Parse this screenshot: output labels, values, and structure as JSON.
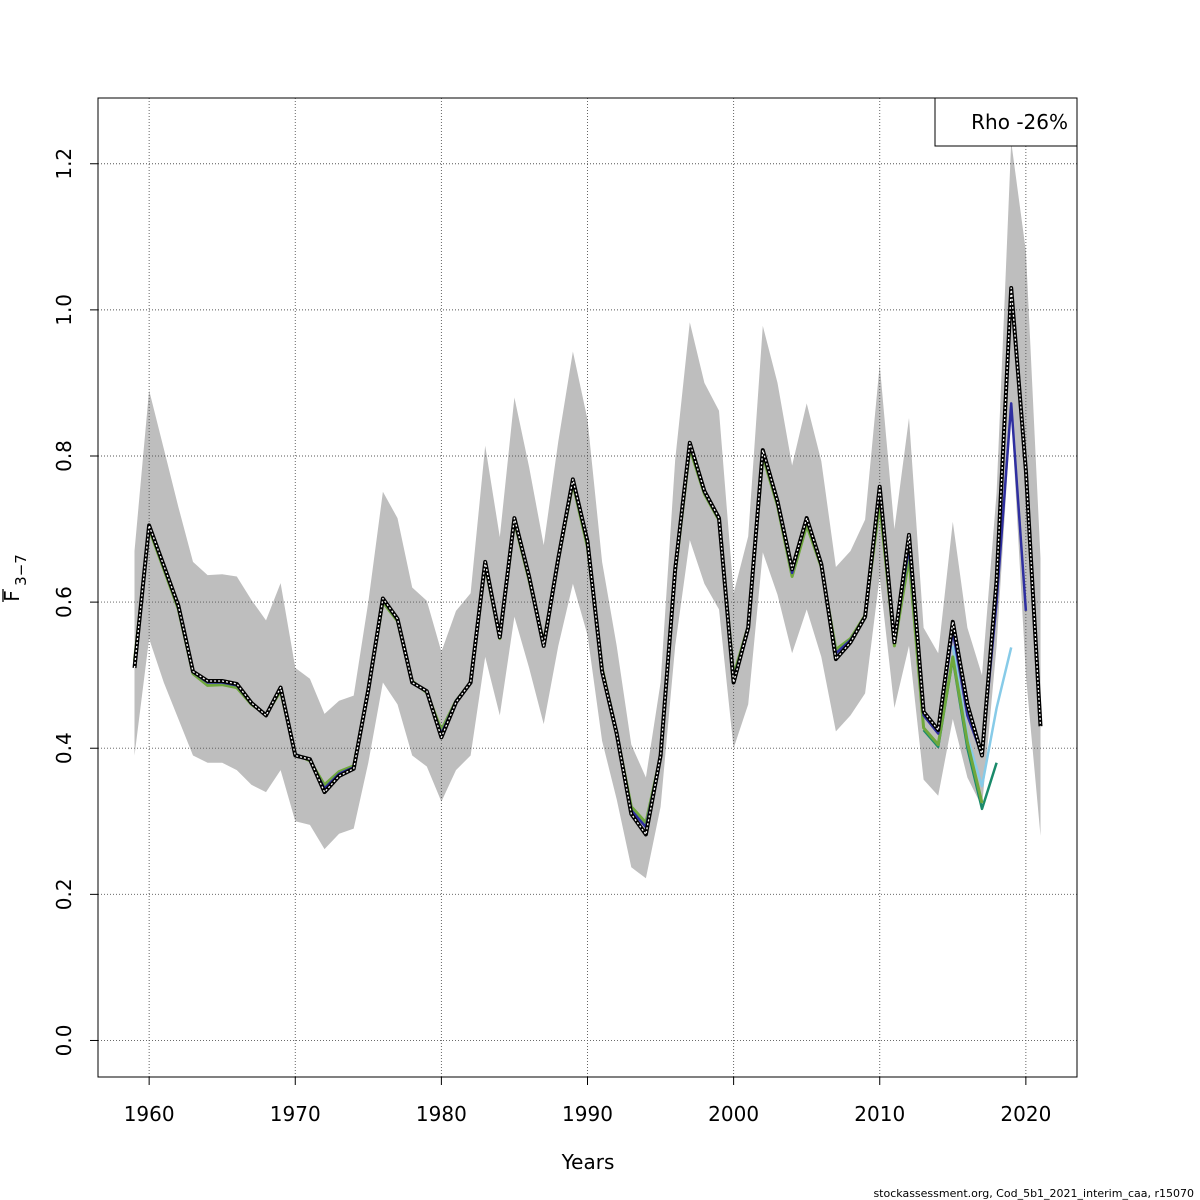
{
  "chart_data": {
    "type": "line",
    "xlabel": "Years",
    "ylabel_main": "F",
    "ylabel_sub": "3−7",
    "xlim": [
      1956.5,
      2023.5
    ],
    "ylim": [
      -0.05,
      1.29
    ],
    "xticks": [
      1960,
      1970,
      1980,
      1990,
      2000,
      2010,
      2020
    ],
    "yticks": [
      0.0,
      0.2,
      0.4,
      0.6,
      0.8,
      1.0,
      1.2
    ],
    "ytick_labels": [
      "0.0",
      "0.2",
      "0.4",
      "0.6",
      "0.8",
      "1.0",
      "1.2"
    ],
    "grid": true,
    "legend": {
      "position": "top-right",
      "text": "Rho -26%"
    },
    "credit": "stockassessment.org, Cod_5b1_2021_interim_caa, r15070",
    "colors": {
      "band": "#bebebe",
      "full": "#000000",
      "peel1": "#2e2ea0",
      "peel2": "#6fa83c",
      "peel3": "#1a8a6a",
      "peel4": "#87cbe8"
    },
    "band": {
      "x": [
        1959,
        1960,
        1961,
        1962,
        1963,
        1964,
        1965,
        1966,
        1967,
        1968,
        1969,
        1970,
        1971,
        1972,
        1973,
        1974,
        1975,
        1976,
        1977,
        1978,
        1979,
        1980,
        1981,
        1982,
        1983,
        1984,
        1985,
        1986,
        1987,
        1988,
        1989,
        1990,
        1991,
        1992,
        1993,
        1994,
        1995,
        1996,
        1997,
        1998,
        1999,
        2000,
        2001,
        2002,
        2003,
        2004,
        2005,
        2006,
        2007,
        2008,
        2009,
        2010,
        2011,
        2012,
        2013,
        2014,
        2015,
        2016,
        2017,
        2018,
        2019,
        2020,
        2021
      ],
      "lower": [
        0.39,
        0.55,
        0.49,
        0.44,
        0.39,
        0.38,
        0.38,
        0.37,
        0.35,
        0.34,
        0.37,
        0.3,
        0.295,
        0.262,
        0.283,
        0.29,
        0.38,
        0.49,
        0.46,
        0.39,
        0.375,
        0.327,
        0.37,
        0.39,
        0.525,
        0.445,
        0.58,
        0.51,
        0.433,
        0.54,
        0.625,
        0.555,
        0.41,
        0.33,
        0.237,
        0.222,
        0.32,
        0.54,
        0.685,
        0.625,
        0.59,
        0.4,
        0.46,
        0.668,
        0.61,
        0.53,
        0.59,
        0.525,
        0.423,
        0.445,
        0.475,
        0.635,
        0.455,
        0.54,
        0.357,
        0.335,
        0.44,
        0.36,
        0.32,
        0.54,
        0.86,
        0.5,
        0.28
      ],
      "upper": [
        0.67,
        0.89,
        0.81,
        0.73,
        0.655,
        0.637,
        0.638,
        0.635,
        0.603,
        0.575,
        0.626,
        0.51,
        0.495,
        0.447,
        0.465,
        0.472,
        0.6,
        0.751,
        0.715,
        0.62,
        0.602,
        0.532,
        0.588,
        0.612,
        0.814,
        0.689,
        0.88,
        0.785,
        0.678,
        0.82,
        0.943,
        0.85,
        0.655,
        0.54,
        0.405,
        0.36,
        0.49,
        0.795,
        0.983,
        0.9,
        0.862,
        0.612,
        0.69,
        0.978,
        0.9,
        0.787,
        0.872,
        0.793,
        0.648,
        0.67,
        0.713,
        0.925,
        0.7,
        0.852,
        0.565,
        0.53,
        0.71,
        0.565,
        0.5,
        0.75,
        1.23,
        1.08,
        0.66
      ]
    },
    "series": [
      {
        "role": "full",
        "x": [
          1959,
          1960,
          1961,
          1962,
          1963,
          1964,
          1965,
          1966,
          1967,
          1968,
          1969,
          1970,
          1971,
          1972,
          1973,
          1974,
          1975,
          1976,
          1977,
          1978,
          1979,
          1980,
          1981,
          1982,
          1983,
          1984,
          1985,
          1986,
          1987,
          1988,
          1989,
          1990,
          1991,
          1992,
          1993,
          1994,
          1995,
          1996,
          1997,
          1998,
          1999,
          2000,
          2001,
          2002,
          2003,
          2004,
          2005,
          2006,
          2007,
          2008,
          2009,
          2010,
          2011,
          2012,
          2013,
          2014,
          2015,
          2016,
          2017,
          2018,
          2019,
          2020,
          2021
        ],
        "values": [
          0.51,
          0.705,
          0.65,
          0.595,
          0.505,
          0.492,
          0.492,
          0.488,
          0.462,
          0.445,
          0.483,
          0.39,
          0.385,
          0.34,
          0.362,
          0.372,
          0.48,
          0.605,
          0.577,
          0.49,
          0.478,
          0.415,
          0.463,
          0.49,
          0.655,
          0.552,
          0.715,
          0.635,
          0.54,
          0.66,
          0.768,
          0.683,
          0.505,
          0.42,
          0.31,
          0.282,
          0.39,
          0.645,
          0.818,
          0.752,
          0.715,
          0.49,
          0.565,
          0.808,
          0.738,
          0.645,
          0.715,
          0.652,
          0.522,
          0.545,
          0.58,
          0.758,
          0.545,
          0.692,
          0.45,
          0.425,
          0.573,
          0.46,
          0.39,
          0.63,
          1.03,
          0.78,
          0.43
        ]
      },
      {
        "role": "peel1",
        "x": [
          1959,
          1960,
          1961,
          1962,
          1963,
          1964,
          1965,
          1966,
          1967,
          1968,
          1969,
          1970,
          1971,
          1972,
          1973,
          1974,
          1975,
          1976,
          1977,
          1978,
          1979,
          1980,
          1981,
          1982,
          1983,
          1984,
          1985,
          1986,
          1987,
          1988,
          1989,
          1990,
          1991,
          1992,
          1993,
          1994,
          1995,
          1996,
          1997,
          1998,
          1999,
          2000,
          2001,
          2002,
          2003,
          2004,
          2005,
          2006,
          2007,
          2008,
          2009,
          2010,
          2011,
          2012,
          2013,
          2014,
          2015,
          2016,
          2017,
          2018,
          2019,
          2020
        ],
        "values": [
          0.515,
          0.703,
          0.648,
          0.593,
          0.504,
          0.49,
          0.49,
          0.486,
          0.461,
          0.445,
          0.482,
          0.392,
          0.384,
          0.345,
          0.365,
          0.374,
          0.48,
          0.603,
          0.576,
          0.491,
          0.477,
          0.42,
          0.465,
          0.49,
          0.653,
          0.552,
          0.713,
          0.633,
          0.542,
          0.66,
          0.766,
          0.68,
          0.508,
          0.42,
          0.315,
          0.292,
          0.39,
          0.643,
          0.816,
          0.75,
          0.714,
          0.495,
          0.566,
          0.806,
          0.736,
          0.64,
          0.715,
          0.65,
          0.53,
          0.548,
          0.58,
          0.752,
          0.545,
          0.675,
          0.445,
          0.42,
          0.56,
          0.445,
          0.39,
          0.6,
          0.872,
          0.588
        ]
      },
      {
        "role": "peel2",
        "x": [
          1959,
          1960,
          1961,
          1962,
          1963,
          1964,
          1965,
          1966,
          1967,
          1968,
          1969,
          1970,
          1971,
          1972,
          1973,
          1974,
          1975,
          1976,
          1977,
          1978,
          1979,
          1980,
          1981,
          1982,
          1983,
          1984,
          1985,
          1986,
          1987,
          1988,
          1989,
          1990,
          1991,
          1992,
          1993,
          1994,
          1995,
          1996,
          1997,
          1998,
          1999,
          2000,
          2001,
          2002,
          2003,
          2004,
          2005,
          2006,
          2007,
          2008,
          2009,
          2010,
          2011,
          2012,
          2013,
          2014,
          2015,
          2016,
          2017
        ],
        "values": [
          0.52,
          0.7,
          0.645,
          0.59,
          0.502,
          0.486,
          0.487,
          0.483,
          0.46,
          0.446,
          0.478,
          0.392,
          0.383,
          0.35,
          0.368,
          0.376,
          0.48,
          0.6,
          0.574,
          0.492,
          0.476,
          0.425,
          0.465,
          0.49,
          0.65,
          0.55,
          0.71,
          0.63,
          0.545,
          0.658,
          0.762,
          0.675,
          0.51,
          0.42,
          0.32,
          0.298,
          0.39,
          0.64,
          0.81,
          0.748,
          0.712,
          0.5,
          0.567,
          0.8,
          0.732,
          0.635,
          0.705,
          0.648,
          0.535,
          0.55,
          0.582,
          0.735,
          0.54,
          0.66,
          0.428,
          0.405,
          0.525,
          0.408,
          0.325
        ]
      },
      {
        "role": "peel3",
        "x": [
          2013,
          2014,
          2015,
          2016,
          2017,
          2018
        ],
        "values": [
          0.425,
          0.402,
          0.522,
          0.4,
          0.317,
          0.38
        ]
      },
      {
        "role": "peel4",
        "x": [
          2015,
          2016,
          2017,
          2018,
          2019
        ],
        "values": [
          0.54,
          0.415,
          0.348,
          0.455,
          0.538
        ]
      }
    ]
  }
}
